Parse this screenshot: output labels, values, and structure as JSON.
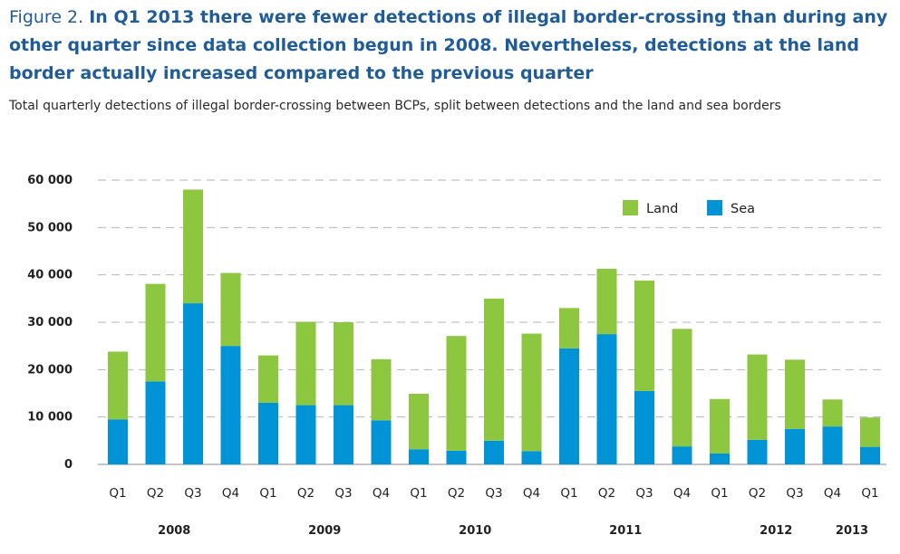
{
  "figure": {
    "label": "Figure 2.",
    "headline": "In Q1 2013 there were fewer detections of illegal border-crossing than during any other quarter since data collection begun in 2008. Nevertheless, detections at the land border actually increased compared to the previous quarter",
    "subtitle": "Total quarterly detections of illegal border-crossing between BCPs, split between detections and the land and sea borders"
  },
  "colors": {
    "land": "#8dc63f",
    "sea": "#0093d6",
    "grid": "#b5b5b5"
  },
  "chart_data": {
    "type": "bar",
    "stacked": true,
    "categories": [
      "Q1",
      "Q2",
      "Q3",
      "Q4",
      "Q1",
      "Q2",
      "Q3",
      "Q4",
      "Q1",
      "Q2",
      "Q3",
      "Q4",
      "Q1",
      "Q2",
      "Q3",
      "Q4",
      "Q1",
      "Q2",
      "Q3",
      "Q4",
      "Q1"
    ],
    "year_groups": [
      {
        "label": "2008",
        "start": 0,
        "end": 3
      },
      {
        "label": "2009",
        "start": 4,
        "end": 7
      },
      {
        "label": "2010",
        "start": 8,
        "end": 11
      },
      {
        "label": "2011",
        "start": 12,
        "end": 15
      },
      {
        "label": "2012",
        "start": 16,
        "end": 19
      },
      {
        "label": "2013",
        "start": 20,
        "end": 20
      }
    ],
    "series": [
      {
        "name": "Sea",
        "values": [
          9500,
          17500,
          34000,
          25000,
          13000,
          12500,
          12500,
          9300,
          3200,
          2900,
          5000,
          2800,
          24500,
          27500,
          15500,
          3800,
          2300,
          5200,
          7500,
          8000,
          3700
        ]
      },
      {
        "name": "Land",
        "values": [
          14300,
          20600,
          24000,
          15400,
          10000,
          17600,
          17500,
          12900,
          11700,
          24200,
          30000,
          24800,
          8500,
          13800,
          23300,
          24800,
          11500,
          18000,
          14600,
          5700,
          6200
        ]
      }
    ],
    "legend": [
      "Land",
      "Sea"
    ],
    "legend_position": "top-right",
    "yticks": [
      "0",
      "10 000",
      "20 000",
      "30 000",
      "40 000",
      "50 000",
      "60 000"
    ],
    "ylim": [
      0,
      60000
    ],
    "grid": true
  }
}
